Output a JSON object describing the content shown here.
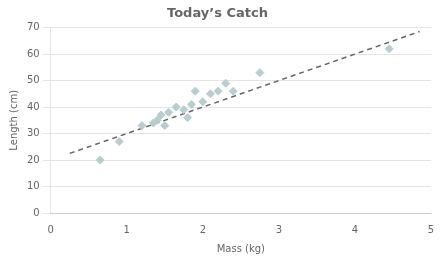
{
  "chart_data": {
    "type": "scatter",
    "title": "Today’s Catch",
    "xlabel": "Mass (kg)",
    "ylabel": "Length (cm)",
    "xlim": [
      0,
      5
    ],
    "ylim": [
      0,
      70
    ],
    "xticks": [
      0,
      1,
      2,
      3,
      4,
      5
    ],
    "yticks": [
      0,
      10,
      20,
      30,
      40,
      50,
      60,
      70
    ],
    "grid": "y",
    "series": [
      {
        "type": "scatter",
        "marker": "diamond",
        "color": "#b8cece",
        "x": [
          0.65,
          0.9,
          1.2,
          1.35,
          1.4,
          1.45,
          1.5,
          1.55,
          1.65,
          1.75,
          1.8,
          1.85,
          1.9,
          2.0,
          2.1,
          2.2,
          2.3,
          2.4,
          2.75,
          4.45
        ],
        "values": [
          20,
          27,
          33,
          34,
          35,
          37,
          33,
          38,
          40,
          39,
          36,
          41,
          46,
          42,
          45,
          46,
          49,
          46,
          53,
          62
        ]
      },
      {
        "type": "line",
        "line_style": "dashed",
        "color": "#666666",
        "x": [
          0.25,
          4.85
        ],
        "values": [
          22.5,
          68.5
        ]
      }
    ]
  }
}
